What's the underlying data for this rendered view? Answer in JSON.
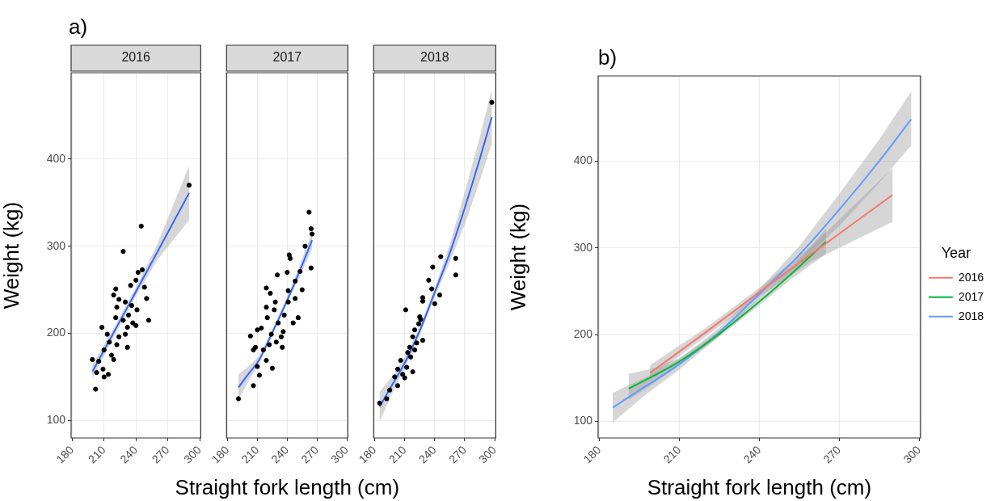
{
  "chart_data": [
    {
      "type": "scatter",
      "title": "2016",
      "ylabel": "Weight (kg)",
      "annotations": [
        "a)"
      ],
      "xlim": [
        179,
        301
      ],
      "xticks": [
        180,
        210,
        240,
        270,
        300
      ],
      "ylim": [
        80,
        499
      ],
      "yticks": [
        100,
        200,
        300,
        400
      ],
      "grid": true,
      "series": [
        {
          "marker": "circle",
          "color": "#000000",
          "x": [
            290,
            245,
            228,
            246,
            242,
            248,
            250,
            252,
            240,
            221,
            219,
            232,
            202,
            199,
            210,
            203,
            208,
            213,
            222,
            230,
            235,
            240,
            217,
            224,
            210,
            205,
            233,
            237,
            228,
            221,
            215,
            222,
            230,
            224,
            236,
            241,
            219,
            209,
            214,
            232
          ],
          "values": [
            370,
            323,
            294,
            273,
            270,
            253,
            240,
            215,
            209,
            251,
            244,
            184,
            136,
            170,
            150,
            155,
            207,
            199,
            230,
            236,
            255,
            261,
            175,
            196,
            181,
            168,
            221,
            212,
            215,
            218,
            190,
            187,
            199,
            239,
            232,
            227,
            170,
            159,
            153,
            207
          ]
        },
        {
          "type": "line",
          "color": "#3366ff",
          "x": [
            199,
            220,
            240,
            260,
            290
          ],
          "values": [
            156,
            203,
            248,
            293,
            361
          ],
          "lower": [
            148,
            198,
            243,
            284,
            330
          ],
          "upper": [
            164,
            208,
            253,
            302,
            392
          ]
        }
      ]
    },
    {
      "type": "scatter",
      "title": "2017",
      "xlabel": "Straight fork length (cm)",
      "tick_labels": "x",
      "xlim": [
        179,
        301
      ],
      "xticks": [
        180,
        210,
        240,
        270,
        300
      ],
      "ylim": [
        80,
        499
      ],
      "yticks": [
        100,
        200,
        300,
        400
      ],
      "grid": true,
      "series": [
        {
          "marker": "circle",
          "color": "#000000",
          "x": [
            191,
            206,
            262,
            264,
            265,
            264,
            258,
            242,
            243,
            255,
            251,
            246,
            219,
            230,
            240,
            253,
            203,
            206,
            212,
            225,
            235,
            219,
            223,
            228,
            214,
            220,
            210,
            224,
            231,
            237,
            241,
            248,
            234,
            216,
            210,
            219,
            229,
            236,
            222,
            241,
            248,
            208,
            227
          ],
          "values": [
            125,
            140,
            339,
            320,
            314,
            275,
            300,
            290,
            286,
            250,
            218,
            212,
            252,
            267,
            270,
            271,
            197,
            181,
            152,
            160,
            184,
            230,
            246,
            236,
            206,
            218,
            204,
            199,
            212,
            221,
            236,
            240,
            196,
            181,
            162,
            169,
            190,
            202,
            187,
            249,
            260,
            184,
            227
          ]
        },
        {
          "type": "line",
          "color": "#3366ff",
          "x": [
            191,
            200,
            212,
            225,
            240,
            252,
            265
          ],
          "values": [
            138,
            152,
            170,
            201,
            238,
            270,
            307
          ],
          "lower": [
            124,
            143,
            166,
            198,
            234,
            264,
            297
          ],
          "upper": [
            153,
            161,
            174,
            204,
            242,
            276,
            317
          ]
        }
      ]
    },
    {
      "type": "scatter",
      "title": "2018",
      "tick_labels": "x",
      "xlim": [
        179,
        301
      ],
      "xticks": [
        180,
        210,
        240,
        270,
        300
      ],
      "ylim": [
        80,
        499
      ],
      "yticks": [
        100,
        200,
        300,
        400
      ],
      "grid": true,
      "series": [
        {
          "marker": "circle",
          "color": "#000000",
          "x": [
            297,
            185,
            192,
            195,
            203,
            211,
            246,
            261,
            261,
            238,
            234,
            237,
            245,
            240,
            228,
            228,
            225,
            224,
            220,
            218,
            228,
            222,
            215,
            213,
            216,
            206,
            203,
            212,
            218,
            208,
            210,
            200,
            220,
            226
          ],
          "values": [
            465,
            120,
            125,
            135,
            140,
            227,
            288,
            286,
            267,
            276,
            261,
            251,
            244,
            234,
            241,
            237,
            219,
            211,
            204,
            196,
            192,
            189,
            184,
            178,
            173,
            169,
            159,
            161,
            156,
            153,
            149,
            150,
            181,
            216
          ]
        },
        {
          "type": "line",
          "color": "#3366ff",
          "x": [
            185,
            197,
            210,
            225,
            240,
            255,
            270,
            285,
            297
          ],
          "values": [
            116,
            140,
            166,
            203,
            247,
            292,
            344,
            400,
            448
          ],
          "lower": [
            99,
            130,
            160,
            198,
            242,
            282,
            325,
            375,
            418
          ],
          "upper": [
            133,
            150,
            172,
            208,
            252,
            302,
            362,
            425,
            480
          ]
        }
      ]
    },
    {
      "type": "line",
      "xlabel": "Straight fork length (cm)",
      "ylabel": "Weight (kg)",
      "annotations": [
        "b)"
      ],
      "legend": "right",
      "legend_title": "Year",
      "xlim": [
        179.5,
        300.5
      ],
      "xticks": [
        180,
        210,
        240,
        270,
        300
      ],
      "ylim": [
        81,
        498
      ],
      "yticks": [
        100,
        200,
        300,
        400
      ],
      "grid": true,
      "series": [
        {
          "name": "2016",
          "color": "#f8766d",
          "x": [
            199,
            220,
            240,
            260,
            290
          ],
          "values": [
            156,
            203,
            249,
            294,
            361
          ],
          "lower": [
            150,
            198,
            244,
            285,
            330
          ],
          "upper": [
            165,
            208,
            254,
            303,
            392
          ]
        },
        {
          "name": "2017",
          "color": "#00ba38",
          "x": [
            191,
            200,
            210,
            225,
            240,
            252,
            265
          ],
          "values": [
            138,
            152,
            169,
            201,
            238,
            270,
            307
          ],
          "lower": [
            125,
            143,
            165,
            198,
            234,
            264,
            293
          ],
          "upper": [
            155,
            161,
            173,
            204,
            242,
            276,
            322
          ]
        },
        {
          "name": "2018",
          "color": "#619cff",
          "x": [
            185,
            197,
            210,
            225,
            240,
            255,
            270,
            285,
            297
          ],
          "values": [
            116,
            140,
            166,
            203,
            247,
            292,
            344,
            400,
            448
          ],
          "lower": [
            99,
            130,
            160,
            198,
            242,
            282,
            325,
            375,
            418
          ],
          "upper": [
            133,
            150,
            172,
            208,
            252,
            302,
            362,
            425,
            480
          ]
        }
      ]
    }
  ]
}
